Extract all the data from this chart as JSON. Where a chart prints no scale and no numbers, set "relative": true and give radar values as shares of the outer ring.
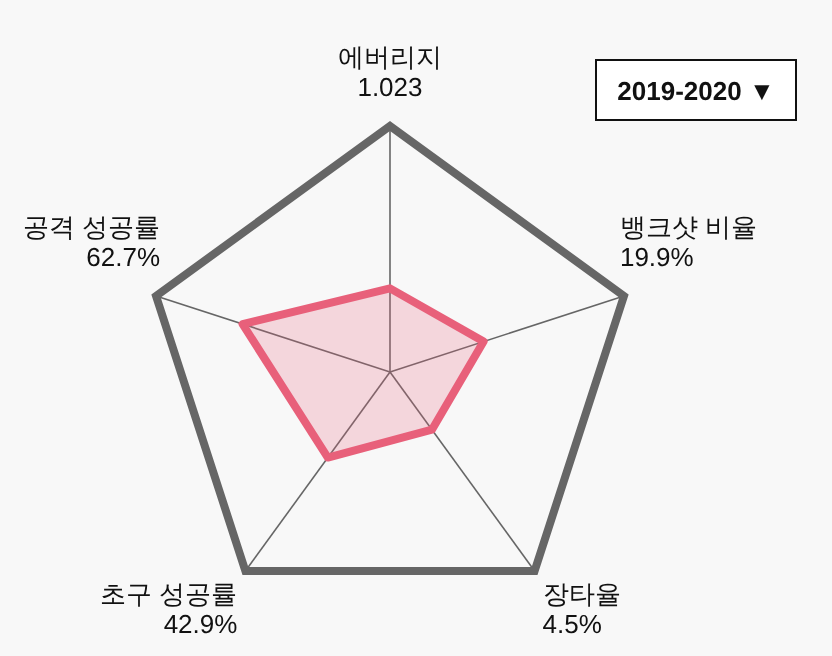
{
  "chart_data": {
    "type": "radar",
    "relative": true,
    "categories": [
      "에버리지\n1.023",
      "뱅크샷 비율\n19.9%",
      "장타율\n4.5%",
      "초구 성공률\n42.9%",
      "공격 성공률\n62.7%"
    ],
    "series": [
      {
        "color": "#e8607a",
        "values": [
          0.34,
          0.4,
          0.29,
          0.43,
          0.63
        ]
      }
    ],
    "annotations": [
      "2019-2020 ▼"
    ]
  }
}
